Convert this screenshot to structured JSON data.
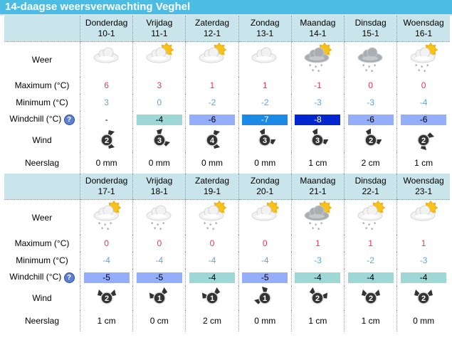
{
  "title": "14-daagse weersverwachting Veghel",
  "labels": {
    "weer": "Weer",
    "max": "Maximum (°C)",
    "min": "Minimum (°C)",
    "windchill": "Windchill (°C)",
    "help": "?",
    "wind": "Wind",
    "neerslag": "Neerslag"
  },
  "colors": {
    "max": "#e8384f",
    "min": "#5ca5e8",
    "wc_-4": "#9ed8d6",
    "wc_-5": "#94aefa",
    "wc_-6": "#94aefa",
    "wc_-7": "#1a8ae6",
    "wc_-8": "#0026d0"
  },
  "weeks": [
    {
      "days": [
        {
          "day": "Donderdag",
          "date": "10-1",
          "icon": "cloud",
          "max": "6",
          "min": "3",
          "windchill": "-",
          "wind": "2",
          "dir": 90,
          "neerslag": "0 mm"
        },
        {
          "day": "Vrijdag",
          "date": "11-1",
          "icon": "sun-cloud",
          "max": "3",
          "min": "0",
          "windchill": "-4",
          "wind": "3",
          "dir": 60,
          "neerslag": "0 mm"
        },
        {
          "day": "Zaterdag",
          "date": "12-1",
          "icon": "sun-cloud",
          "max": "1",
          "min": "-2",
          "windchill": "-6",
          "wind": "4",
          "dir": 90,
          "neerslag": "0 mm"
        },
        {
          "day": "Zondag",
          "date": "13-1",
          "icon": "cloud",
          "max": "1",
          "min": "-2",
          "windchill": "-7",
          "wind": "3",
          "dir": 45,
          "neerslag": "0 mm"
        },
        {
          "day": "Maandag",
          "date": "14-1",
          "icon": "sun-cloud-snow-dark",
          "max": "-1",
          "min": "-3",
          "windchill": "-8",
          "wind": "3",
          "dir": 45,
          "neerslag": "1 cm"
        },
        {
          "day": "Dinsdag",
          "date": "15-1",
          "icon": "cloud-snow-dark",
          "max": "0",
          "min": "-3",
          "windchill": "-6",
          "wind": "2",
          "dir": 45,
          "neerslag": "2 cm"
        },
        {
          "day": "Woensdag",
          "date": "16-1",
          "icon": "sun-cloud-snow",
          "max": "0",
          "min": "-4",
          "windchill": "-6",
          "wind": "2",
          "dir": 120,
          "neerslag": "1 cm"
        }
      ]
    },
    {
      "days": [
        {
          "day": "Donderdag",
          "date": "17-1",
          "icon": "sun-cloud-snow",
          "max": "0",
          "min": "-4",
          "windchill": "-5",
          "wind": "2",
          "dir": 0,
          "neerslag": "1 cm"
        },
        {
          "day": "Vrijdag",
          "date": "18-1",
          "icon": "cloud-snow",
          "max": "0",
          "min": "-4",
          "windchill": "-5",
          "wind": "1",
          "dir": -20,
          "neerslag": "0 cm"
        },
        {
          "day": "Zaterdag",
          "date": "19-1",
          "icon": "sun-cloud-snow",
          "max": "0",
          "min": "-4",
          "windchill": "-4",
          "wind": "1",
          "dir": -20,
          "neerslag": "2 cm"
        },
        {
          "day": "Zondag",
          "date": "20-1",
          "icon": "sun-cloud",
          "max": "0",
          "min": "-4",
          "windchill": "-5",
          "wind": "1",
          "dir": -60,
          "neerslag": "0 mm"
        },
        {
          "day": "Maandag",
          "date": "21-1",
          "icon": "sun-cloud-snow-dark",
          "max": "1",
          "min": "-3",
          "windchill": "-4",
          "wind": "2",
          "dir": 20,
          "neerslag": "1 cm"
        },
        {
          "day": "Dinsdag",
          "date": "22-1",
          "icon": "sun-cloud-snow",
          "max": "1",
          "min": "-2",
          "windchill": "-4",
          "wind": "2",
          "dir": 0,
          "neerslag": "1 cm"
        },
        {
          "day": "Woensdag",
          "date": "23-1",
          "icon": "sun-cloud",
          "max": "1",
          "min": "-3",
          "windchill": "-4",
          "wind": "2",
          "dir": 0,
          "neerslag": "0 mm"
        }
      ]
    }
  ]
}
